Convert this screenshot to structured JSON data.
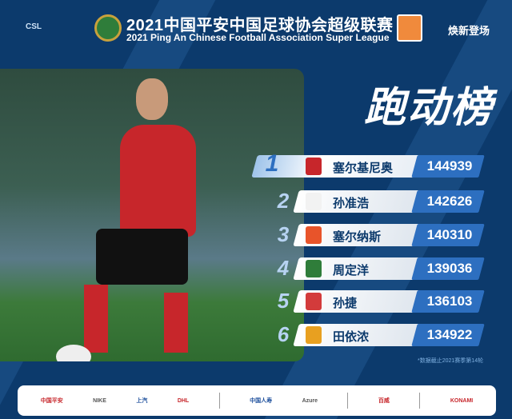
{
  "header": {
    "league_logo": "CSL",
    "title_cn": "2021中国平安中国足球协会超级联赛",
    "title_en": "2021 Ping An Chinese Football Association Super League",
    "slogan": "焕新登场"
  },
  "main": {
    "title": "跑动榜",
    "rankings": [
      {
        "rank": "1",
        "name": "塞尔基尼奥",
        "value": "144939",
        "badge_color": "#c7262b"
      },
      {
        "rank": "2",
        "name": "孙准浩",
        "value": "142626",
        "badge_color": "#f2f2f2"
      },
      {
        "rank": "3",
        "name": "塞尔纳斯",
        "value": "140310",
        "badge_color": "#e8542a"
      },
      {
        "rank": "4",
        "name": "周定洋",
        "value": "139036",
        "badge_color": "#2f7d3a"
      },
      {
        "rank": "5",
        "name": "孙捷",
        "value": "136103",
        "badge_color": "#d33b3b"
      },
      {
        "rank": "6",
        "name": "田依浓",
        "value": "134922",
        "badge_color": "#e8a020"
      }
    ],
    "footnote": "*数据截止2021赛季第14轮"
  },
  "footer": {
    "sponsors": [
      "中国平安",
      "NIKE",
      "上汽",
      "DHL",
      "中国人寿",
      "Azure",
      "百威",
      "KONAMI"
    ]
  }
}
